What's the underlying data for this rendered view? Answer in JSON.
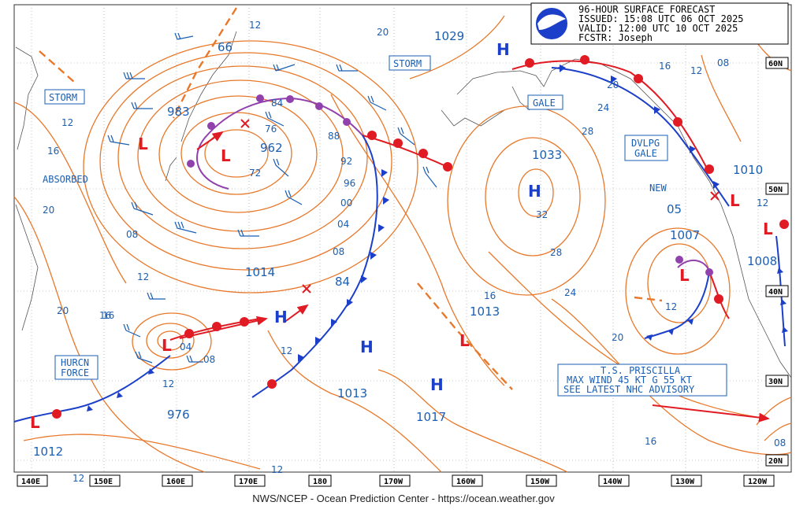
{
  "header": {
    "logo": "noaa-logo",
    "lines": [
      "96-HOUR SURFACE FORECAST",
      "ISSUED: 15:08 UTC 06 OCT 2025",
      "VALID:  12:00 UTC 10 OCT 2025",
      "FCSTR:  Joseph"
    ]
  },
  "footer": "NWS/NCEP - Ocean Prediction Center - https://ocean.weather.gov",
  "longitude_labels": [
    "140E",
    "150E",
    "160E",
    "170E",
    "180",
    "170W",
    "160W",
    "150W",
    "140W",
    "130W",
    "120W"
  ],
  "latitude_labels": [
    "60N",
    "50N",
    "40N",
    "30N",
    "20N"
  ],
  "box_labels": {
    "storm_left": "STORM",
    "storm_center": "STORM",
    "gale_alaska": "GALE",
    "dvlpg_gale_line1": "DVLPG",
    "dvlpg_gale_line2": "GALE",
    "hurcn_force_line1": "HURCN",
    "hurcn_force_line2": "FORCE",
    "priscilla_line1": "T.S. PRISCILLA",
    "priscilla_line2": "MAX WIND 45 KT G 55 KT",
    "priscilla_line3": "SEE LATEST NHC ADVISORY"
  },
  "text_labels": {
    "absorbed": "ABSORBED",
    "new": "NEW"
  },
  "pressure_centers": {
    "highs": [
      "H",
      "H",
      "H",
      "H",
      "H"
    ],
    "lows": [
      "L",
      "L",
      "L",
      "L",
      "L",
      "L",
      "L",
      "L"
    ]
  },
  "pressure_values": [
    "66",
    "983",
    "962",
    "1029",
    "1033",
    "1010",
    "1007",
    "1008",
    "1014",
    "1013",
    "1013",
    "976",
    "1012",
    "1017",
    "05"
  ],
  "isobar_labels": [
    "12",
    "20",
    "16",
    "12",
    "20",
    "16",
    "08",
    "12",
    "20",
    "16",
    "84",
    "76",
    "72",
    "88",
    "92",
    "96",
    "00",
    "04",
    "08",
    "84",
    "12",
    "04",
    "08",
    "12",
    "24",
    "28",
    "32",
    "28",
    "24",
    "20",
    "16",
    "12",
    "08",
    "12",
    "20",
    "16",
    "12",
    "08",
    "12",
    "16",
    "12"
  ],
  "colors": {
    "isobar": "#e8782a",
    "grid": "#999999",
    "cold_front": "#1c3fc9",
    "warm_front": "#e01b24",
    "occluded_front": "#9141ac",
    "label_text": "#1a5fb4",
    "arrow": "#e01b24",
    "coast": "#555555"
  }
}
